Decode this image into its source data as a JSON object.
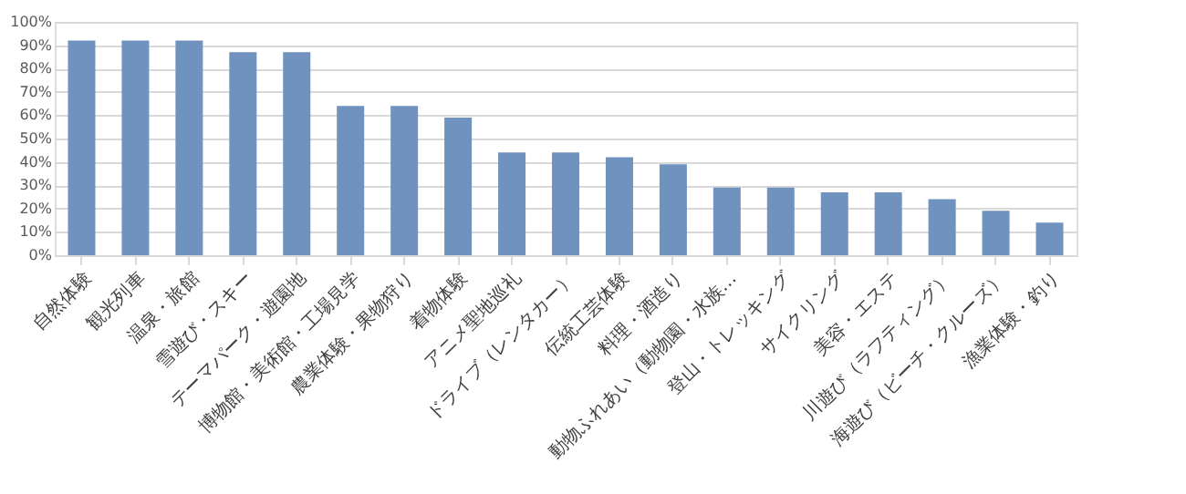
{
  "chart_data": {
    "type": "bar",
    "categories": [
      "自然体験",
      "観光列車",
      "温泉・旅館",
      "雪遊び・スキー",
      "テーマパーク・遊園地",
      "博物館・美術館・工場見学",
      "農業体験・果物狩り",
      "着物体験",
      "アニメ聖地巡礼",
      "ドライブ（レンタカー）",
      "伝統工芸体験",
      "料理・酒造り",
      "動物ふれあい（動物園・水族…",
      "登山・トレッキング",
      "サイクリング",
      "美容・エステ",
      "川遊び（ラフティング）",
      "海遊び（ビーチ・クルーズ）",
      "漁業体験・釣り"
    ],
    "values": [
      92,
      92,
      92,
      87,
      87,
      64,
      64,
      59,
      44,
      44,
      42,
      39,
      29,
      29,
      27,
      27,
      24,
      19,
      14
    ],
    "color": "#7092be",
    "ylim": [
      0,
      100
    ],
    "yticks": [
      {
        "value": 0,
        "label": "0%"
      },
      {
        "value": 10,
        "label": "10%"
      },
      {
        "value": 20,
        "label": "20%"
      },
      {
        "value": 30,
        "label": "30%"
      },
      {
        "value": 40,
        "label": "40%"
      },
      {
        "value": 50,
        "label": "50%"
      },
      {
        "value": 60,
        "label": "60%"
      },
      {
        "value": 70,
        "label": "70%"
      },
      {
        "value": 80,
        "label": "80%"
      },
      {
        "value": 90,
        "label": "90%"
      },
      {
        "value": 100,
        "label": "100%"
      }
    ],
    "grid": "y"
  }
}
